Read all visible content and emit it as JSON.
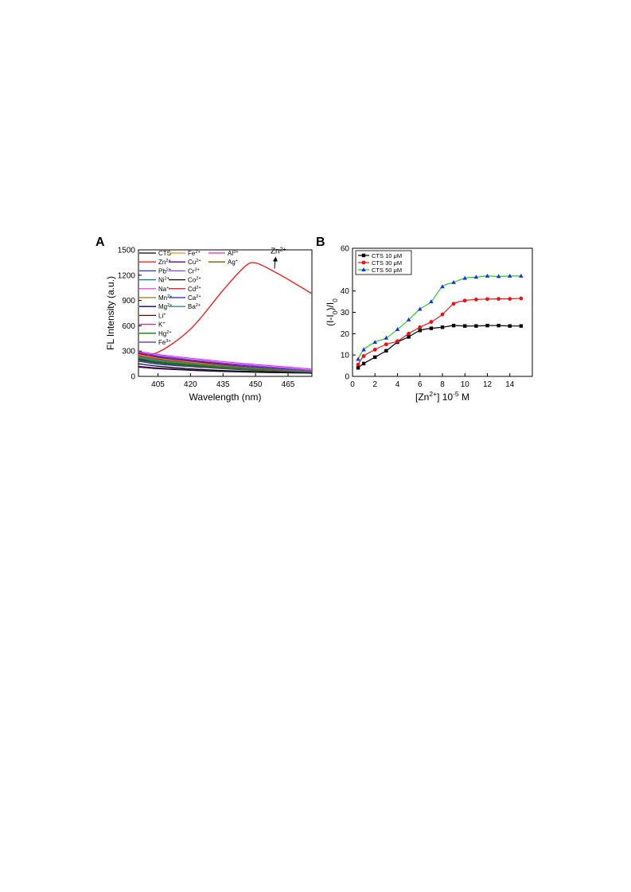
{
  "chart_data": [
    {
      "id": "A",
      "panel_label": "A",
      "type": "line",
      "xlabel": "Wavelength (nm)",
      "ylabel": "FL Intensity (a.u.)",
      "xlim": [
        396,
        476
      ],
      "ylim": [
        0,
        1500
      ],
      "xticks": [
        405,
        420,
        435,
        450,
        465
      ],
      "yticks": [
        0,
        300,
        600,
        900,
        1200,
        1500
      ],
      "legend_columns": [
        [
          "CTS",
          "Zn2+",
          "Pb2+",
          "Ni2+",
          "Na+",
          "Mn2+",
          "Mg2+",
          "Li+",
          "K+",
          "Hg2+",
          "Fe3+"
        ],
        [
          "Fe2+",
          "Cu2+",
          "Cr3+",
          "Co2+",
          "Cd2+",
          "Ca2+",
          "Ba2+"
        ],
        [
          "Al3+",
          "Ag+"
        ]
      ],
      "annotation": "Zn2+",
      "series": [
        {
          "name": "CTS",
          "color": "#000000",
          "y": [
            150,
            120,
            90,
            70,
            58,
            48,
            42
          ]
        },
        {
          "name": "Zn2+",
          "color": "#ee2222",
          "y": [
            265,
            285,
            560,
            1020,
            1300,
            1345,
            1250,
            1150,
            980
          ]
        },
        {
          "name": "Pb2+",
          "color": "#2233cc",
          "y": [
            290,
            230,
            180,
            140,
            105,
            80,
            60
          ]
        },
        {
          "name": "Ni2+",
          "color": "#008080",
          "y": [
            220,
            180,
            140,
            110,
            85,
            65,
            50
          ]
        },
        {
          "name": "Na+",
          "color": "#ff44cc",
          "y": [
            250,
            205,
            160,
            125,
            95,
            75,
            55
          ]
        },
        {
          "name": "Mn2+",
          "color": "#808000",
          "y": [
            230,
            190,
            150,
            115,
            90,
            70,
            55
          ]
        },
        {
          "name": "Mg2+",
          "color": "#000080",
          "y": [
            200,
            165,
            130,
            100,
            78,
            60,
            48
          ]
        },
        {
          "name": "Li+",
          "color": "#800000",
          "y": [
            270,
            220,
            175,
            135,
            100,
            78,
            60
          ]
        },
        {
          "name": "K+",
          "color": "#e0208a",
          "y": [
            240,
            200,
            155,
            120,
            92,
            72,
            56
          ]
        },
        {
          "name": "Hg2+",
          "color": "#008000",
          "y": [
            210,
            170,
            135,
            105,
            82,
            64,
            50
          ]
        },
        {
          "name": "Fe3+",
          "color": "#5522aa",
          "y": [
            280,
            240,
            190,
            150,
            115,
            85,
            65
          ]
        },
        {
          "name": "Fe2+",
          "color": "#ff8800",
          "y": [
            260,
            215,
            170,
            130,
            98,
            76,
            58
          ]
        },
        {
          "name": "Cu2+",
          "color": "#660099",
          "y": [
            120,
            100,
            78,
            62,
            50,
            43,
            38
          ]
        },
        {
          "name": "Cr3+",
          "color": "#8844ff",
          "y": [
            285,
            245,
            200,
            160,
            125,
            95,
            70
          ]
        },
        {
          "name": "Co2+",
          "color": "#111111",
          "y": [
            110,
            90,
            72,
            58,
            48,
            42,
            38
          ]
        },
        {
          "name": "Cd2+",
          "color": "#cc2233",
          "y": [
            245,
            205,
            160,
            125,
            96,
            74,
            57
          ]
        },
        {
          "name": "Ca2+",
          "color": "#1122ee",
          "y": [
            180,
            145,
            115,
            90,
            70,
            56,
            46
          ]
        },
        {
          "name": "Ba2+",
          "color": "#338888",
          "y": [
            235,
            195,
            155,
            120,
            93,
            72,
            56
          ]
        },
        {
          "name": "Al3+",
          "color": "#ee22ee",
          "y": [
            295,
            260,
            215,
            175,
            140,
            110,
            85
          ]
        },
        {
          "name": "Ag+",
          "color": "#666600",
          "y": [
            190,
            155,
            122,
            95,
            74,
            60,
            50
          ]
        }
      ],
      "x_common": [
        396,
        405,
        420,
        435,
        450,
        465,
        476
      ],
      "x_zn": [
        396,
        405,
        420,
        435,
        445,
        450,
        458,
        465,
        476
      ]
    },
    {
      "id": "B",
      "panel_label": "B",
      "type": "line",
      "xlabel": "[Zn2+] 10-5 M",
      "ylabel": "(I-I0)/I0",
      "xlim": [
        0,
        16
      ],
      "ylim": [
        0,
        60
      ],
      "xticks": [
        0,
        2,
        4,
        6,
        8,
        10,
        12,
        14
      ],
      "yticks": [
        0,
        10,
        20,
        30,
        40,
        60
      ],
      "x": [
        0.5,
        1,
        2,
        3,
        4,
        5,
        6,
        7,
        8,
        9,
        10,
        11,
        12,
        13,
        14,
        15
      ],
      "series": [
        {
          "name": "CTS 10 μM",
          "color": "#000000",
          "marker": "square",
          "values": [
            4.0,
            6.0,
            9.0,
            12.0,
            16.0,
            18.5,
            21.5,
            22.5,
            23.0,
            23.8,
            23.6,
            23.6,
            23.8,
            23.8,
            23.6,
            23.6
          ]
        },
        {
          "name": "CTS 30 μM",
          "color": "#ee1111",
          "marker": "circle",
          "values": [
            5.5,
            9.5,
            12.5,
            15.0,
            16.5,
            20.0,
            23.0,
            25.5,
            29.0,
            34.0,
            35.5,
            36.0,
            36.2,
            36.3,
            36.3,
            36.5
          ]
        },
        {
          "name": "CTS 50 μM",
          "color": "#22cc22",
          "marker": "triangle",
          "values": [
            8.0,
            12.5,
            16.0,
            18.0,
            22.0,
            26.5,
            31.5,
            35.0,
            42.0,
            44.0,
            46.0,
            46.5,
            47.0,
            46.8,
            47.0,
            47.0
          ]
        }
      ]
    }
  ]
}
